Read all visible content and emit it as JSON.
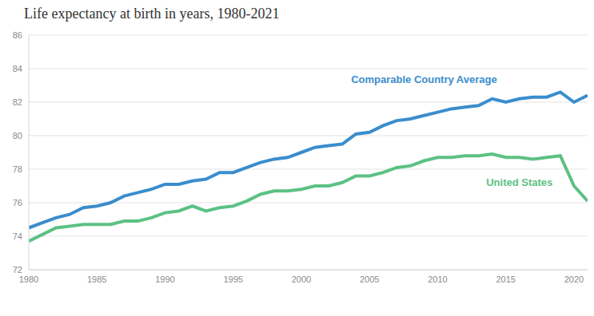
{
  "chart_data": {
    "type": "line",
    "title": "Life expectancy at birth in years, 1980-2021",
    "x": [
      1980,
      1981,
      1982,
      1983,
      1984,
      1985,
      1986,
      1987,
      1988,
      1989,
      1990,
      1991,
      1992,
      1993,
      1994,
      1995,
      1996,
      1997,
      1998,
      1999,
      2000,
      2001,
      2002,
      2003,
      2004,
      2005,
      2006,
      2007,
      2008,
      2009,
      2010,
      2011,
      2012,
      2013,
      2014,
      2015,
      2016,
      2017,
      2018,
      2019,
      2020,
      2021
    ],
    "xlim": [
      1980,
      2021
    ],
    "xticks": [
      1980,
      1985,
      1990,
      1995,
      2000,
      2005,
      2010,
      2015,
      2020
    ],
    "ylim": [
      72,
      86
    ],
    "yticks": [
      72,
      74,
      76,
      78,
      80,
      82,
      84,
      86
    ],
    "grid": true,
    "series": [
      {
        "name": "Comparable Country Average",
        "color": "#3a8dcc",
        "values": [
          74.5,
          74.8,
          75.1,
          75.3,
          75.7,
          75.8,
          76.0,
          76.4,
          76.6,
          76.8,
          77.1,
          77.1,
          77.3,
          77.4,
          77.8,
          77.8,
          78.1,
          78.4,
          78.6,
          78.7,
          79.0,
          79.3,
          79.4,
          79.5,
          80.1,
          80.2,
          80.6,
          80.9,
          81.0,
          81.2,
          81.4,
          81.6,
          81.7,
          81.8,
          82.2,
          82.0,
          82.2,
          82.3,
          82.3,
          82.6,
          82.0,
          82.4
        ]
      },
      {
        "name": "United States",
        "color": "#5cc183",
        "values": [
          73.7,
          74.1,
          74.5,
          74.6,
          74.7,
          74.7,
          74.7,
          74.9,
          74.9,
          75.1,
          75.4,
          75.5,
          75.8,
          75.5,
          75.7,
          75.8,
          76.1,
          76.5,
          76.7,
          76.7,
          76.8,
          77.0,
          77.0,
          77.2,
          77.6,
          77.6,
          77.8,
          78.1,
          78.2,
          78.5,
          78.7,
          78.7,
          78.8,
          78.8,
          78.9,
          78.7,
          78.7,
          78.6,
          78.7,
          78.8,
          77.0,
          76.1
        ]
      }
    ]
  }
}
